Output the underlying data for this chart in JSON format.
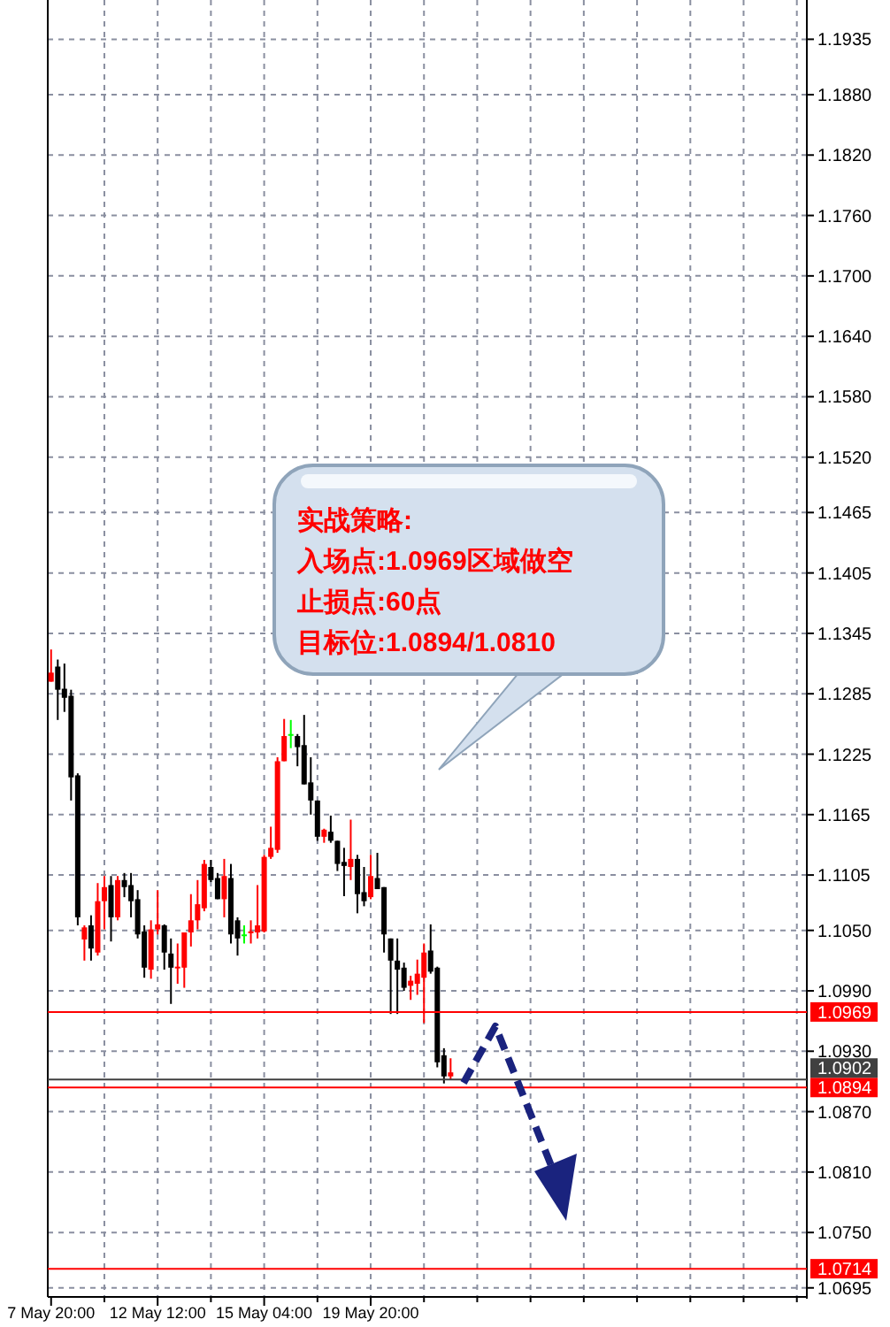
{
  "chart_data": {
    "type": "candlestick",
    "categories": [
      "7 May 20:00",
      null,
      null,
      null,
      null,
      null,
      null,
      null,
      null,
      null,
      null,
      null,
      null,
      null,
      null,
      null,
      "12 May 12:00",
      null,
      null,
      null,
      null,
      null,
      null,
      null,
      null,
      null,
      null,
      null,
      null,
      null,
      null,
      null,
      "15 May 04:00",
      null,
      null,
      null,
      null,
      null,
      null,
      null,
      null,
      null,
      null,
      null,
      null,
      null,
      null,
      null,
      "19 May 20:00",
      null,
      null,
      null,
      null,
      null,
      null,
      null,
      null,
      null,
      null,
      null,
      null,
      null,
      null,
      null,
      null,
      null,
      null,
      null,
      null,
      null,
      null,
      null,
      null,
      null,
      null,
      null,
      null,
      null,
      null,
      null,
      null,
      null,
      null,
      null,
      null,
      null,
      null,
      null,
      null,
      null,
      null,
      null,
      null,
      null,
      null,
      null,
      null,
      null,
      null,
      null,
      null,
      null,
      null,
      null,
      null,
      null,
      null,
      null,
      null,
      null,
      null,
      null,
      null,
      null
    ],
    "ohlc": [
      [
        1.1297,
        1.1329,
        1.1297,
        1.1306
      ],
      [
        1.1312,
        1.1319,
        1.1259,
        1.1289
      ],
      [
        1.129,
        1.1315,
        1.1267,
        1.1281
      ],
      [
        1.1283,
        1.1289,
        1.1179,
        1.1202
      ],
      [
        1.1204,
        1.1206,
        1.1055,
        1.1063
      ],
      [
        1.1041,
        1.1055,
        1.102,
        1.1053
      ],
      [
        1.1055,
        1.1065,
        1.102,
        1.1032
      ],
      [
        1.1028,
        1.1097,
        1.1025,
        1.1079
      ],
      [
        1.1079,
        1.1104,
        1.1051,
        1.1093
      ],
      [
        1.1095,
        1.1104,
        1.1039,
        1.1063
      ],
      [
        1.1063,
        1.1104,
        1.106,
        1.11
      ],
      [
        1.11,
        1.1107,
        1.1083,
        1.1093
      ],
      [
        1.1095,
        1.1107,
        1.1063,
        1.1079
      ],
      [
        1.1081,
        1.109,
        1.1042,
        1.1046
      ],
      [
        1.1049,
        1.1055,
        1.1003,
        1.1013
      ],
      [
        1.1011,
        1.106,
        1.1002,
        1.1051
      ],
      [
        1.1051,
        1.109,
        1.1046,
        1.1056
      ],
      [
        1.1055,
        1.1056,
        1.1011,
        1.1028
      ],
      [
        1.1027,
        1.1042,
        1.0977,
        1.1013
      ],
      [
        1.1013,
        1.1037,
        1.0997,
        1.1014
      ],
      [
        1.1013,
        1.1048,
        1.0993,
        1.1048
      ],
      [
        1.1048,
        1.1086,
        1.1034,
        1.106
      ],
      [
        1.106,
        1.11,
        1.1051,
        1.1076
      ],
      [
        1.1072,
        1.112,
        1.1069,
        1.1116
      ],
      [
        1.1113,
        1.112,
        1.1098,
        1.11
      ],
      [
        1.1102,
        1.1107,
        1.1081,
        1.1081
      ],
      [
        1.1081,
        1.1121,
        1.1063,
        1.1104
      ],
      [
        1.1102,
        1.1116,
        1.1037,
        1.1046
      ],
      [
        1.106,
        1.1063,
        1.1025,
        1.1042
      ],
      [
        1.1046,
        1.1055,
        1.1037,
        1.1046
      ],
      [
        1.1048,
        1.106,
        1.1037,
        1.1049
      ],
      [
        1.1048,
        1.1095,
        1.1042,
        1.1055
      ],
      [
        1.1049,
        1.1125,
        1.1048,
        1.1123
      ],
      [
        1.1123,
        1.1153,
        1.1121,
        1.1132
      ],
      [
        1.113,
        1.1222,
        1.1127,
        1.1218
      ],
      [
        1.1218,
        1.126,
        1.1218,
        1.1243
      ],
      [
        1.1245,
        1.1259,
        1.1231,
        1.1245
      ],
      [
        1.1243,
        1.1245,
        1.1213,
        1.1232
      ],
      [
        1.1234,
        1.1264,
        1.1195,
        1.1195
      ],
      [
        1.1197,
        1.1222,
        1.1165,
        1.1179
      ],
      [
        1.1179,
        1.1179,
        1.1139,
        1.1143
      ],
      [
        1.1143,
        1.1151,
        1.1137,
        1.115
      ],
      [
        1.1148,
        1.1164,
        1.1137,
        1.1139
      ],
      [
        1.1139,
        1.1139,
        1.1109,
        1.1116
      ],
      [
        1.1118,
        1.1132,
        1.1084,
        1.1114
      ],
      [
        1.1113,
        1.116,
        1.11,
        1.1121
      ],
      [
        1.1121,
        1.1125,
        1.1067,
        1.1086
      ],
      [
        1.1088,
        1.1113,
        1.1074,
        1.1079
      ],
      [
        1.1083,
        1.1125,
        1.1081,
        1.1104
      ],
      [
        1.1102,
        1.1127,
        1.1091,
        1.1091
      ],
      [
        1.1093,
        1.1093,
        1.1028,
        1.1046
      ],
      [
        1.1042,
        1.1042,
        1.0967,
        1.102
      ],
      [
        1.102,
        1.1042,
        1.0967,
        1.1011
      ],
      [
        1.1013,
        1.1018,
        1.099,
        1.0993
      ],
      [
        1.0995,
        1.1005,
        1.0981,
        1.1
      ],
      [
        1.0997,
        1.1021,
        1.0986,
        1.1007
      ],
      [
        1.1003,
        1.1037,
        1.0958,
        1.1028
      ],
      [
        1.103,
        1.1056,
        1.1007,
        1.1009
      ],
      [
        1.1013,
        1.1014,
        1.0914,
        1.0919
      ],
      [
        1.0926,
        1.0933,
        1.0898,
        1.0905
      ],
      [
        1.0905,
        1.0923,
        1.0902,
        1.0909
      ],
      null,
      null,
      null,
      null,
      null,
      null,
      null,
      null,
      null,
      null,
      null,
      null,
      null,
      null,
      null,
      null,
      null,
      null,
      null,
      null,
      null,
      null,
      null,
      null,
      null,
      null,
      null,
      null,
      null,
      null,
      null,
      null,
      null,
      null,
      null,
      null,
      null,
      null,
      null,
      null,
      null,
      null,
      null,
      null,
      null,
      null,
      null,
      null,
      null,
      null,
      null,
      null,
      null
    ],
    "colors": [
      "#ff0000",
      "#000000",
      "#000000",
      "#000000",
      "#000000",
      "#ff0000",
      "#000000",
      "#ff0000",
      "#ff0000",
      "#000000",
      "#ff0000",
      "#000000",
      "#000000",
      "#000000",
      "#000000",
      "#ff0000",
      "#ff0000",
      "#000000",
      "#000000",
      "#ff0000",
      "#ff0000",
      "#ff0000",
      "#ff0000",
      "#ff0000",
      "#000000",
      "#000000",
      "#ff0000",
      "#000000",
      "#000000",
      "#00ff00",
      "#ff0000",
      "#ff0000",
      "#ff0000",
      "#ff0000",
      "#ff0000",
      "#ff0000",
      "#00ff00",
      "#000000",
      "#000000",
      "#000000",
      "#000000",
      "#ff0000",
      "#000000",
      "#000000",
      "#000000",
      "#ff0000",
      "#000000",
      "#000000",
      "#ff0000",
      "#000000",
      "#000000",
      "#000000",
      "#000000",
      "#000000",
      "#ff0000",
      "#ff0000",
      "#ff0000",
      "#000000",
      "#000000",
      "#000000",
      "#ff0000",
      null,
      null,
      null,
      null,
      null,
      null,
      null,
      null,
      null,
      null,
      null,
      null,
      null,
      null,
      null,
      null,
      null,
      null,
      null,
      null,
      null,
      null,
      null,
      null,
      null,
      null,
      null,
      null,
      null,
      null,
      null,
      null,
      null,
      null,
      null,
      null,
      null,
      null,
      null,
      null,
      null,
      null,
      null,
      null,
      null,
      null,
      null,
      null,
      null,
      null,
      null,
      null,
      null
    ],
    "ylim": [
      1.0686,
      1.1974
    ],
    "yticks": [
      1.1935,
      {
        "value": 1.188,
        "label": "1.1880"
      },
      {
        "value": 1.182,
        "label": "1.1820"
      },
      {
        "value": 1.176,
        "label": "1.1760"
      },
      {
        "value": 1.17,
        "label": "1.1700"
      },
      {
        "value": 1.164,
        "label": "1.1640"
      },
      {
        "value": 1.158,
        "label": "1.1580"
      },
      {
        "value": 1.152,
        "label": "1.1520"
      },
      1.1465,
      1.1405,
      1.1345,
      1.1285,
      1.1225,
      1.1165,
      1.1105,
      {
        "value": 1.105,
        "label": "1.1050"
      },
      {
        "value": 1.099,
        "label": "1.0990"
      },
      {
        "value": 1.093,
        "label": "1.0930"
      },
      {
        "value": 1.087,
        "label": "1.0870"
      },
      {
        "value": 1.081,
        "label": "1.0810"
      },
      {
        "value": 1.075,
        "label": "1.0750"
      },
      1.0695
    ],
    "grid": true,
    "ref_lines": [
      {
        "axis": "y",
        "value": 1.0969,
        "label": "1.0969",
        "color": "#ff0000"
      },
      {
        "axis": "y",
        "value": 1.0902,
        "label": "1.0902",
        "color": "#404040"
      },
      {
        "axis": "y",
        "value": 1.0894,
        "label": "1.0894",
        "color": "#ff0000"
      },
      {
        "axis": "y",
        "value": 1.0714,
        "label": "1.0714",
        "color": "#ff0000"
      }
    ],
    "annotations": [
      "实战策略:",
      "入场点:1.0969区域做空",
      "止损点:60点",
      "目标位:1.0894/1.0810"
    ]
  }
}
